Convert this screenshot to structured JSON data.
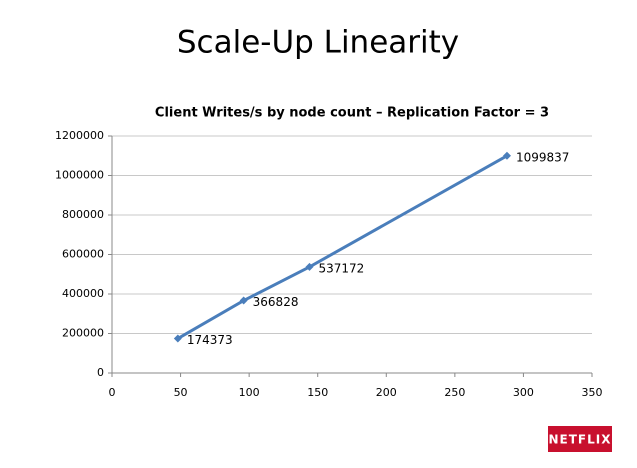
{
  "slide_title": "Scale-Up Linearity",
  "logo": "NETFLIX",
  "chart_data": {
    "type": "line",
    "title": "Client Writes/s by node count – Replication Factor = 3",
    "x": [
      48,
      96,
      144,
      288
    ],
    "series": [
      {
        "name": "Client Writes/s",
        "color": "#4a7ebb",
        "values": [
          174373,
          366828,
          537172,
          1099837
        ]
      }
    ],
    "xlim": [
      0,
      350
    ],
    "xticks": [
      0,
      50,
      100,
      150,
      200,
      250,
      300,
      350
    ],
    "ylim": [
      0,
      1200000
    ],
    "yticks": [
      0,
      200000,
      400000,
      600000,
      800000,
      1000000,
      1200000
    ],
    "grid": true
  }
}
